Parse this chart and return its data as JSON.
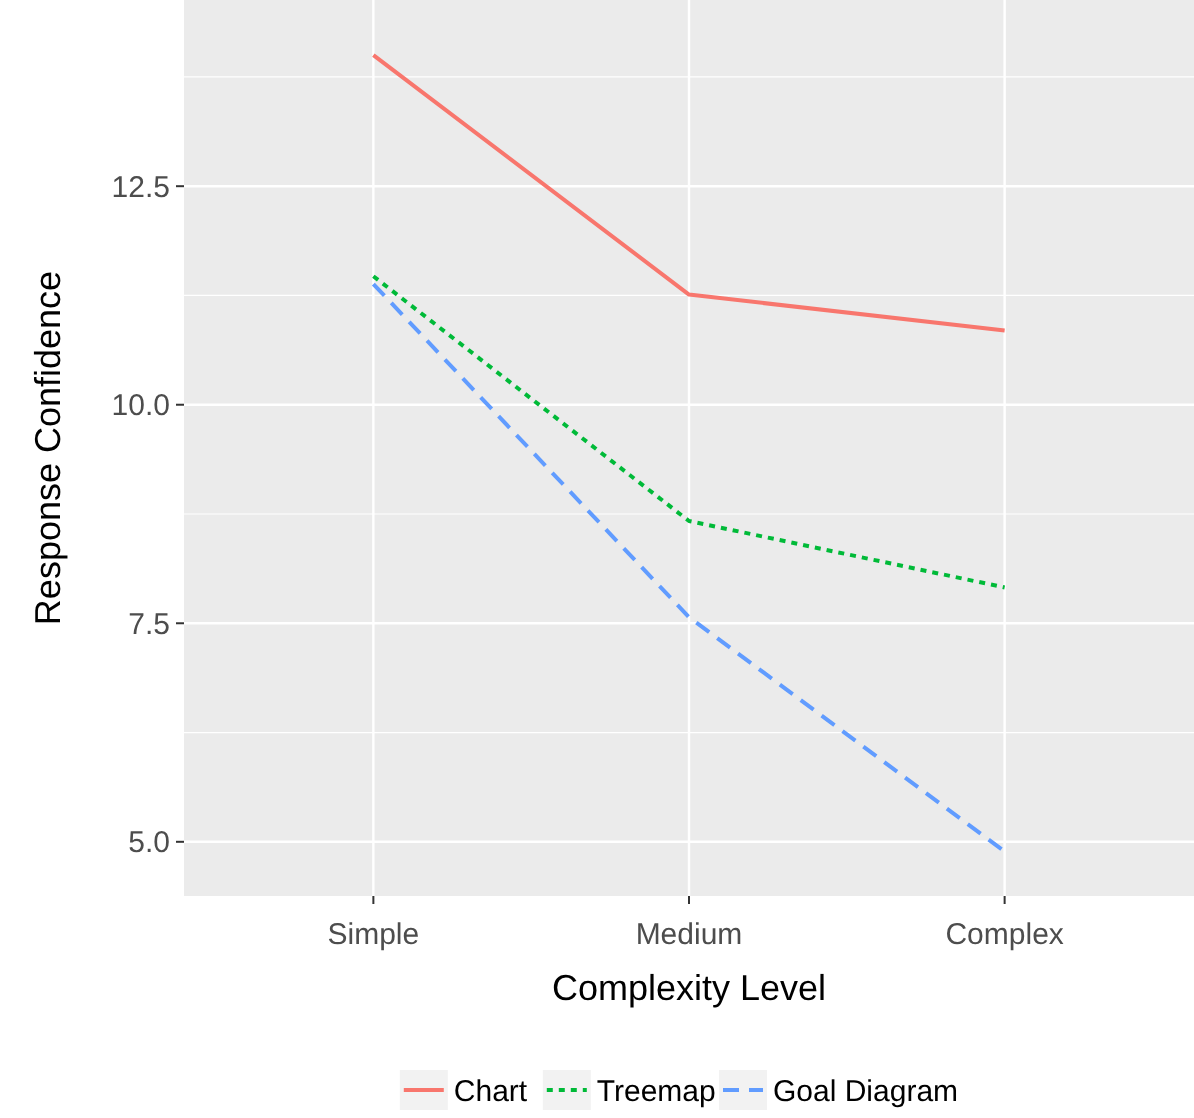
{
  "chart_data": {
    "type": "line",
    "xlabel": "Complexity Level",
    "ylabel": "Response Confidence",
    "categories": [
      "Simple",
      "Medium",
      "Complex"
    ],
    "series": [
      {
        "name": "Chart",
        "color": "#f8766d",
        "line_style": "solid",
        "values": [
          14.0,
          11.26,
          10.85
        ]
      },
      {
        "name": "Treemap",
        "color": "#00ba38",
        "line_style": "dotted",
        "values": [
          11.47,
          8.67,
          7.91
        ]
      },
      {
        "name": "Goal Diagram",
        "color": "#619cff",
        "line_style": "dashed",
        "values": [
          11.38,
          7.57,
          4.89
        ]
      }
    ],
    "ylim": [
      4.38,
      14.63
    ],
    "yticks": [
      {
        "value": 5,
        "label": "5.0"
      },
      7.5,
      {
        "value": 10,
        "label": "10.0"
      },
      12.5
    ],
    "grid": true,
    "legend": "bottom"
  }
}
